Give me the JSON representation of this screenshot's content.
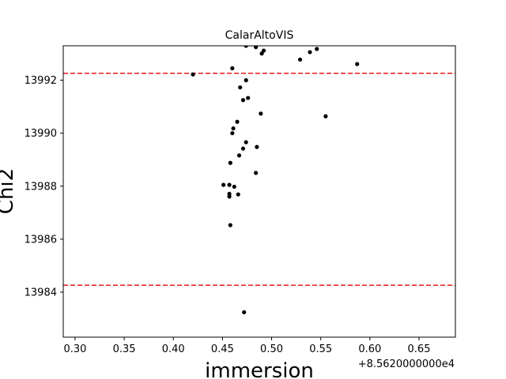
{
  "chart_data": {
    "type": "scatter",
    "title": "CalarAltoVIS",
    "xlabel": "immersion",
    "ylabel": "Chi2",
    "x_offset_label": "+8.5620000000e4",
    "xlim": [
      0.288,
      0.687
    ],
    "ylim": [
      13982.3,
      13993.3
    ],
    "xticks": [
      0.3,
      0.35,
      0.4,
      0.45,
      0.5,
      0.55,
      0.6,
      0.65
    ],
    "xtick_labels": [
      "0.30",
      "0.35",
      "0.40",
      "0.45",
      "0.50",
      "0.55",
      "0.60",
      "0.65"
    ],
    "yticks": [
      13984,
      13986,
      13988,
      13990,
      13992
    ],
    "ytick_labels": [
      "13984",
      "13986",
      "13988",
      "13990",
      "13992"
    ],
    "hlines": [
      {
        "y": 13992.26,
        "color": "#e41a1c",
        "style": "dashed"
      },
      {
        "y": 13984.26,
        "color": "#e41a1c",
        "style": "dashed"
      }
    ],
    "point_color": "#000000",
    "grid": false,
    "points": [
      {
        "x": 0.42,
        "y": 13992.22
      },
      {
        "x": 0.46,
        "y": 13992.45
      },
      {
        "x": 0.468,
        "y": 13991.73
      },
      {
        "x": 0.474,
        "y": 13992.0
      },
      {
        "x": 0.471,
        "y": 13991.25
      },
      {
        "x": 0.476,
        "y": 13991.33
      },
      {
        "x": 0.489,
        "y": 13990.74
      },
      {
        "x": 0.465,
        "y": 13990.43
      },
      {
        "x": 0.461,
        "y": 13990.18
      },
      {
        "x": 0.46,
        "y": 13990.0
      },
      {
        "x": 0.474,
        "y": 13989.66
      },
      {
        "x": 0.471,
        "y": 13989.42
      },
      {
        "x": 0.485,
        "y": 13989.48
      },
      {
        "x": 0.467,
        "y": 13989.16
      },
      {
        "x": 0.458,
        "y": 13988.88
      },
      {
        "x": 0.484,
        "y": 13988.5
      },
      {
        "x": 0.451,
        "y": 13988.05
      },
      {
        "x": 0.457,
        "y": 13988.05
      },
      {
        "x": 0.462,
        "y": 13987.98
      },
      {
        "x": 0.457,
        "y": 13987.71
      },
      {
        "x": 0.457,
        "y": 13987.61
      },
      {
        "x": 0.466,
        "y": 13987.69
      },
      {
        "x": 0.458,
        "y": 13986.53
      },
      {
        "x": 0.472,
        "y": 13983.24
      },
      {
        "x": 0.474,
        "y": 13993.3
      },
      {
        "x": 0.484,
        "y": 13993.25
      },
      {
        "x": 0.492,
        "y": 13993.12
      },
      {
        "x": 0.49,
        "y": 13993.01
      },
      {
        "x": 0.539,
        "y": 13993.06
      },
      {
        "x": 0.546,
        "y": 13993.18
      },
      {
        "x": 0.529,
        "y": 13992.78
      },
      {
        "x": 0.587,
        "y": 13992.61
      },
      {
        "x": 0.555,
        "y": 13990.64
      }
    ]
  }
}
